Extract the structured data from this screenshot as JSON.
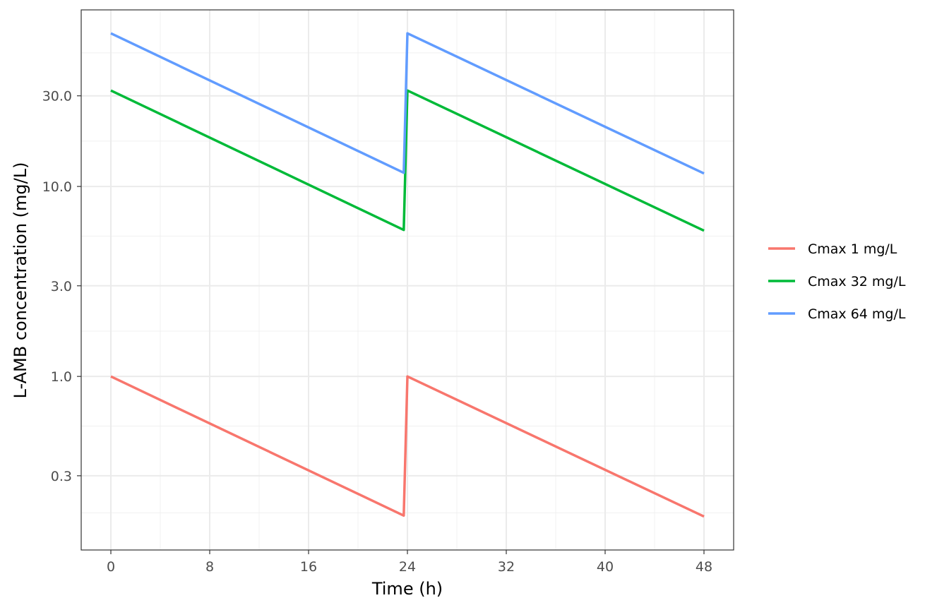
{
  "chart_data": {
    "type": "line",
    "xlabel": "Time (h)",
    "ylabel": "L-AMB concentration (mg/L)",
    "xlim": [
      -2.4,
      50.4
    ],
    "ylim": [
      0.122,
      85
    ],
    "y_scale": "log10",
    "x_ticks": [
      0,
      8,
      16,
      24,
      32,
      40,
      48
    ],
    "x_tick_labels": [
      "0",
      "8",
      "16",
      "24",
      "32",
      "40",
      "48"
    ],
    "y_ticks": [
      0.3,
      1,
      3,
      10,
      30
    ],
    "y_tick_labels": [
      "0.3",
      "1.0",
      "3.0",
      "10.0",
      "30.0"
    ],
    "grid": true,
    "legend_position": "right",
    "series": [
      {
        "name": "Cmax 1 mg/L",
        "color": "#F8766D",
        "points": [
          [
            0,
            1.0
          ],
          [
            23.7,
            0.185
          ],
          [
            24,
            1.0
          ],
          [
            48,
            0.183
          ]
        ]
      },
      {
        "name": "Cmax 32 mg/L",
        "color": "#00BA38",
        "points": [
          [
            0,
            32
          ],
          [
            23.7,
            5.9
          ],
          [
            24,
            32
          ],
          [
            48,
            5.85
          ]
        ]
      },
      {
        "name": "Cmax 64 mg/L",
        "color": "#619CFF",
        "points": [
          [
            0,
            64
          ],
          [
            23.7,
            11.8
          ],
          [
            24,
            64
          ],
          [
            48,
            11.7
          ]
        ]
      }
    ]
  }
}
